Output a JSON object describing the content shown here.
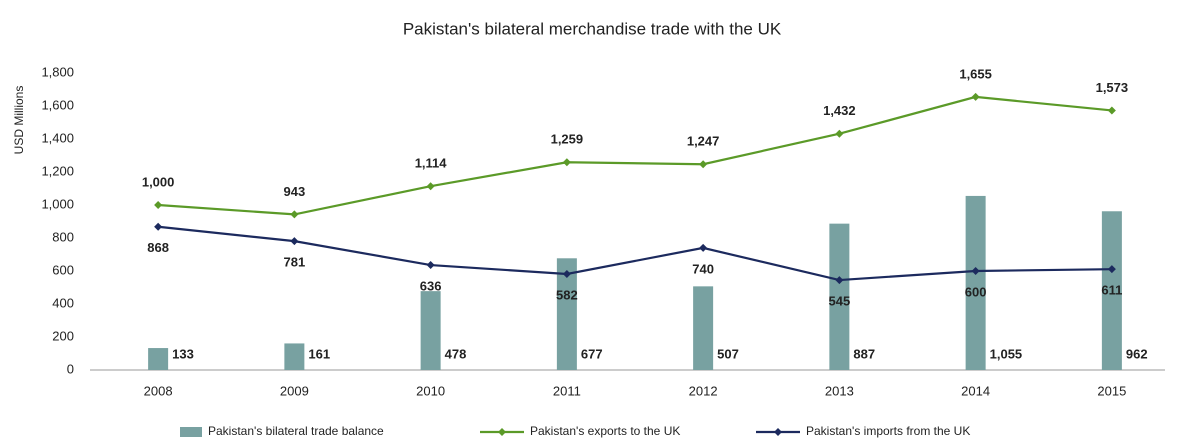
{
  "chart_data": {
    "type": "combo",
    "title": "Pakistan's bilateral merchandise trade with the UK",
    "y_label": "USD Millions",
    "categories": [
      "2008",
      "2009",
      "2010",
      "2011",
      "2012",
      "2013",
      "2014",
      "2015"
    ],
    "series": [
      {
        "name": "Pakistan's bilateral trade balance",
        "type": "bar",
        "color": "#78a1a1",
        "values": [
          133,
          161,
          478,
          677,
          507,
          887,
          1055,
          962
        ],
        "value_labels": [
          "133",
          "161",
          "478",
          "677",
          "507",
          "887",
          "1,055",
          "962"
        ]
      },
      {
        "name": "Pakistan's exports to the UK",
        "type": "line",
        "color": "#5b9a28",
        "values": [
          1000,
          943,
          1114,
          1259,
          1247,
          1432,
          1655,
          1573
        ],
        "value_labels": [
          "1,000",
          "943",
          "1,114",
          "1,259",
          "1,247",
          "1,432",
          "1,655",
          "1,573"
        ]
      },
      {
        "name": "Pakistan's imports from the UK",
        "type": "line",
        "color": "#1c2a5e",
        "values": [
          868,
          781,
          636,
          582,
          740,
          545,
          600,
          611
        ],
        "value_labels": [
          "868",
          "781",
          "636",
          "582",
          "740",
          "545",
          "600",
          "611"
        ]
      }
    ],
    "ylim": [
      0,
      1800
    ],
    "yticks": [
      0,
      200,
      400,
      600,
      800,
      {
        "value": 1000,
        "label": "1,000"
      },
      {
        "value": 1200,
        "label": "1,200"
      },
      {
        "value": 1400,
        "label": "1,400"
      },
      {
        "value": 1600,
        "label": "1,600"
      },
      {
        "value": 1800,
        "label": "1,800"
      }
    ],
    "legend": "bottom"
  }
}
